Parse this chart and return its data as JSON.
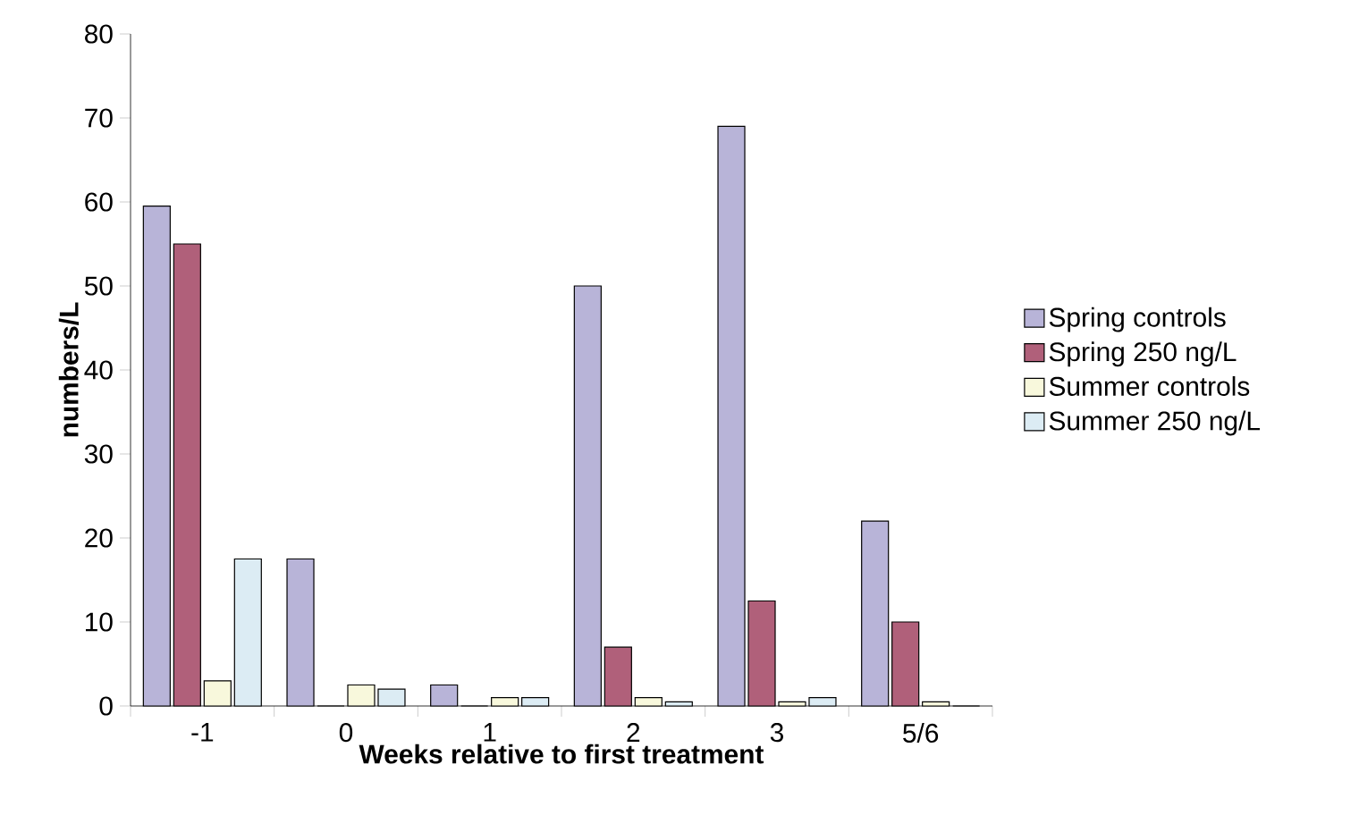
{
  "chart_data": {
    "type": "bar",
    "xlabel": "Weeks relative to first treatment",
    "ylabel": "numbers/L",
    "categories": [
      "-1",
      "0",
      "1",
      "2",
      "3",
      "5/6"
    ],
    "series": [
      {
        "name": "Spring controls",
        "color": "#b8b4d8",
        "values": [
          59.5,
          17.5,
          2.5,
          50,
          69,
          22
        ]
      },
      {
        "name": "Spring 250 ng/L",
        "color": "#b0607a",
        "values": [
          55,
          0,
          0,
          7,
          12.5,
          10
        ]
      },
      {
        "name": "Summer controls",
        "color": "#f8f8dc",
        "values": [
          3,
          2.5,
          1,
          1,
          0.5,
          0.5
        ]
      },
      {
        "name": "Summer 250 ng/L",
        "color": "#dcecf4",
        "values": [
          17.5,
          2,
          1,
          0.5,
          1,
          0
        ]
      }
    ],
    "ylim": [
      0,
      80
    ],
    "yticks": [
      0,
      10,
      20,
      30,
      40,
      50,
      60,
      70,
      80
    ],
    "grid": false,
    "legend": "right"
  }
}
